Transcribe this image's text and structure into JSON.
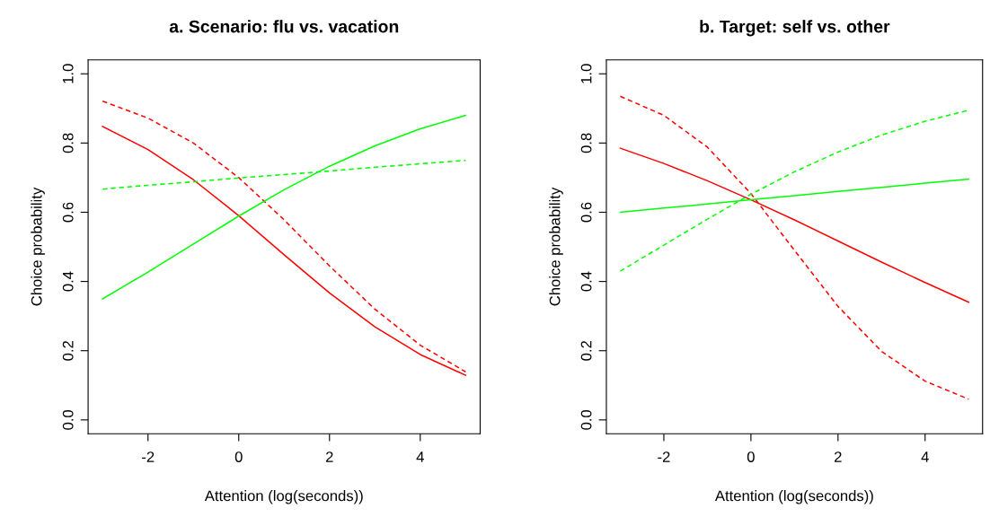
{
  "chart_data": [
    {
      "type": "line",
      "title": "a. Scenario: flu vs. vacation",
      "xlabel": "Attention (log(seconds))",
      "ylabel": "Choice probability",
      "x": [
        -3,
        -2,
        -1,
        0,
        1,
        2,
        3,
        4,
        5
      ],
      "series": [
        {
          "color": "#ff0000",
          "line_style": "solid",
          "values": [
            0.848,
            0.781,
            0.694,
            0.59,
            0.477,
            0.367,
            0.269,
            0.189,
            0.129
          ]
        },
        {
          "color": "#ff0000",
          "line_style": "dashed",
          "values": [
            0.921,
            0.872,
            0.8,
            0.7,
            0.578,
            0.445,
            0.32,
            0.216,
            0.139
          ]
        },
        {
          "color": "#00ff00",
          "line_style": "solid",
          "values": [
            0.35,
            0.427,
            0.508,
            0.589,
            0.665,
            0.733,
            0.792,
            0.841,
            0.88
          ]
        },
        {
          "color": "#00ff00",
          "line_style": "dashed",
          "values": [
            0.667,
            0.678,
            0.688,
            0.699,
            0.709,
            0.719,
            0.73,
            0.74,
            0.75
          ]
        }
      ],
      "xlim": [
        -3.32,
        5.32
      ],
      "ylim": [
        -0.04,
        1.04
      ],
      "xticks": [
        -2,
        0,
        2,
        4
      ],
      "yticks": [
        {
          "value": 0,
          "label": "0.0"
        },
        {
          "value": 0.2,
          "label": "0.2"
        },
        {
          "value": 0.4,
          "label": "0.4"
        },
        {
          "value": 0.6,
          "label": "0.6"
        },
        {
          "value": 0.8,
          "label": "0.8"
        },
        {
          "value": 1,
          "label": "1.0"
        }
      ],
      "grid": false,
      "marker": "none"
    },
    {
      "type": "line",
      "title": "b. Target: self vs. other",
      "xlabel": "Attention (log(seconds))",
      "ylabel": "Choice probability",
      "x": [
        -3,
        -2,
        -1,
        0,
        1,
        2,
        3,
        4,
        5
      ],
      "series": [
        {
          "color": "#ff0000",
          "line_style": "solid",
          "values": [
            0.785,
            0.741,
            0.691,
            0.636,
            0.578,
            0.517,
            0.456,
            0.397,
            0.34
          ]
        },
        {
          "color": "#ff0000",
          "line_style": "dashed",
          "values": [
            0.935,
            0.88,
            0.788,
            0.654,
            0.49,
            0.328,
            0.198,
            0.112,
            0.06
          ]
        },
        {
          "color": "#00ff00",
          "line_style": "solid",
          "values": [
            0.6,
            0.612,
            0.624,
            0.636,
            0.648,
            0.66,
            0.672,
            0.684,
            0.696
          ]
        },
        {
          "color": "#00ff00",
          "line_style": "dashed",
          "values": [
            0.43,
            0.505,
            0.58,
            0.652,
            0.717,
            0.774,
            0.823,
            0.863,
            0.895
          ]
        }
      ],
      "xlim": [
        -3.32,
        5.32
      ],
      "ylim": [
        -0.04,
        1.04
      ],
      "xticks": [
        -2,
        0,
        2,
        4
      ],
      "yticks": [
        {
          "value": 0,
          "label": "0.0"
        },
        {
          "value": 0.2,
          "label": "0.2"
        },
        {
          "value": 0.4,
          "label": "0.4"
        },
        {
          "value": 0.6,
          "label": "0.6"
        },
        {
          "value": 0.8,
          "label": "0.8"
        },
        {
          "value": 1,
          "label": "1.0"
        }
      ],
      "grid": false,
      "marker": "none"
    }
  ]
}
